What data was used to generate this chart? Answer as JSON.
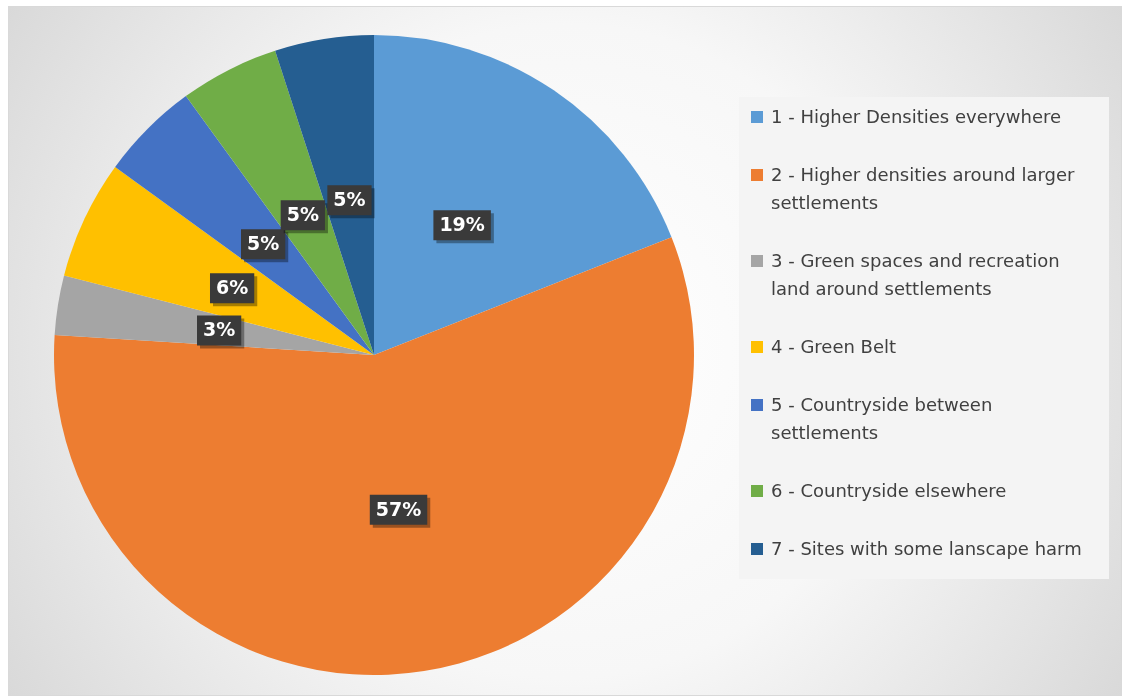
{
  "chart_data": {
    "type": "pie",
    "categories": [
      "1 - Higher Densities everywhere",
      "2 - Higher densities around larger settlements",
      "3 - Green spaces and recreation land around settlements",
      "4  - Green Belt",
      "5 - Countryside between settlements",
      "6 - Countryside elsewhere",
      "7 - Sites with some lanscape harm"
    ],
    "values": [
      19,
      57,
      3,
      6,
      5,
      5,
      5
    ],
    "colors": [
      "#5b9bd5",
      "#ed7d31",
      "#a5a5a5",
      "#ffc000",
      "#4472c4",
      "#70ad47",
      "#255e91"
    ],
    "value_labels": [
      "19%",
      "57%",
      "3%",
      "6%",
      "5%",
      "5%",
      "5%"
    ],
    "legend": "right"
  }
}
